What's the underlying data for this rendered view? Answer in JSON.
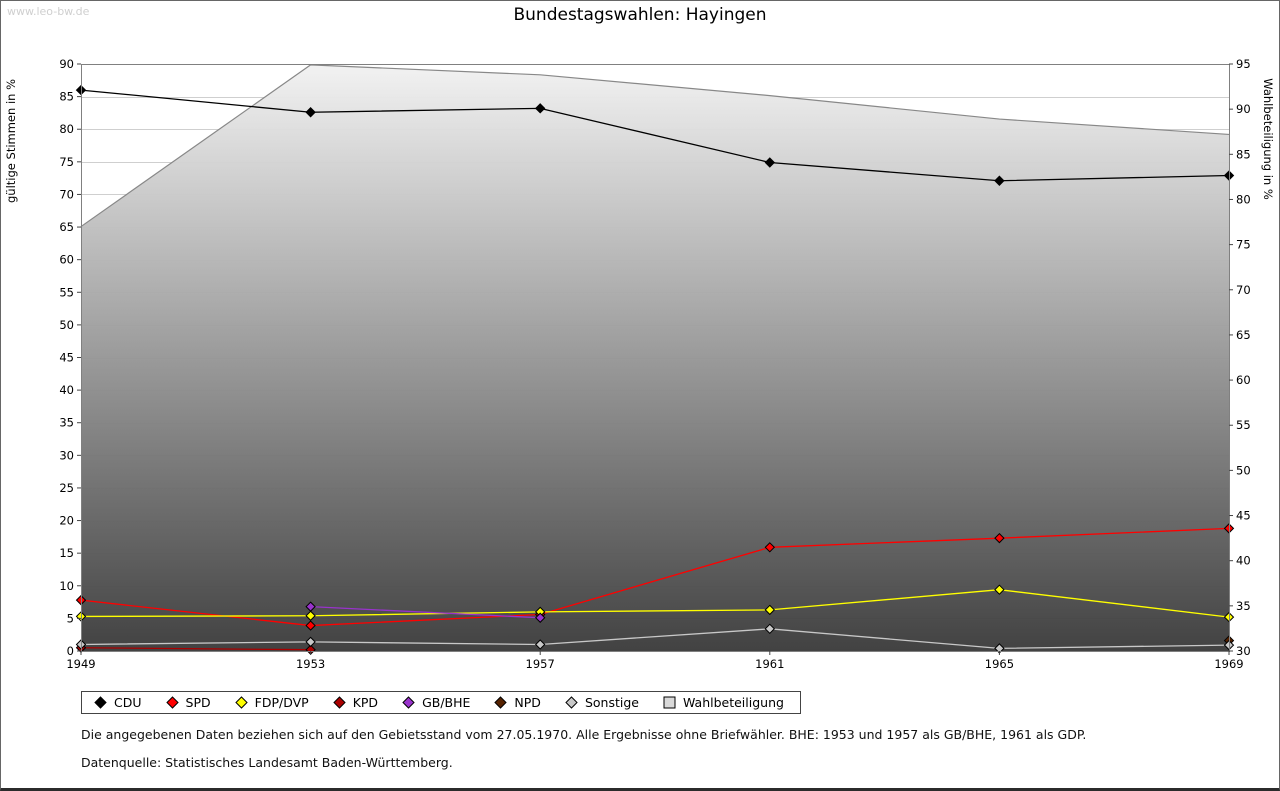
{
  "watermark": "www.leo-bw.de",
  "notes": [
    "Die angegebenen Daten beziehen sich auf den Gebietsstand vom 27.05.1970. Alle Ergebnisse ohne Briefwähler. BHE: 1953 und 1957 als GB/BHE, 1961 als GDP.",
    "Datenquelle: Statistisches Landesamt Baden-Württemberg."
  ],
  "chart_data": {
    "type": "line",
    "title": "Bundestagswahlen: Hayingen",
    "categories": [
      "1949",
      "1953",
      "1957",
      "1961",
      "1965",
      "1969"
    ],
    "left_axis": {
      "label": "gültige Stimmen in %",
      "min": 0,
      "max": 90,
      "step": 5
    },
    "right_axis": {
      "label": "Wahlbeteiligung in %",
      "min": 30,
      "max": 95,
      "step": 5
    },
    "grid": true,
    "legend_position": "bottom",
    "series": [
      {
        "name": "CDU",
        "color": "#000000",
        "marker": "diamond",
        "axis": "left",
        "type": "line",
        "values": [
          86.0,
          82.6,
          83.2,
          74.9,
          72.1,
          72.9
        ]
      },
      {
        "name": "SPD",
        "color": "#ff0000",
        "marker": "diamond",
        "axis": "left",
        "type": "line",
        "values": [
          7.8,
          3.9,
          5.6,
          15.9,
          17.3,
          18.8
        ]
      },
      {
        "name": "FDP/DVP",
        "color": "#ffff00",
        "marker": "diamond",
        "axis": "left",
        "type": "line",
        "values": [
          5.3,
          5.4,
          6.0,
          6.3,
          9.4,
          5.2
        ]
      },
      {
        "name": "KPD",
        "color": "#aa0000",
        "marker": "diamond",
        "axis": "left",
        "type": "line",
        "values": [
          0.5,
          0.2,
          null,
          null,
          null,
          null
        ]
      },
      {
        "name": "GB/BHE",
        "color": "#9933cc",
        "marker": "diamond",
        "axis": "left",
        "type": "line",
        "values": [
          null,
          6.8,
          5.1,
          null,
          null,
          null
        ]
      },
      {
        "name": "NPD",
        "color": "#552200",
        "marker": "diamond",
        "axis": "left",
        "type": "line",
        "values": [
          null,
          null,
          null,
          null,
          null,
          1.6
        ]
      },
      {
        "name": "Sonstige",
        "color": "#c8c8c8",
        "marker": "diamond",
        "axis": "left",
        "type": "line",
        "values": [
          1.0,
          1.4,
          1.0,
          3.4,
          0.4,
          0.9
        ]
      },
      {
        "name": "Wahlbeteiligung",
        "color": "#888888",
        "marker": "square",
        "axis": "right",
        "type": "area",
        "fill_top": "#f2f2f2",
        "fill_bottom": "#3c3c3c",
        "legend_fill": "#d9d9d9",
        "values": [
          77.0,
          94.9,
          93.8,
          91.5,
          88.9,
          87.2
        ]
      }
    ]
  }
}
